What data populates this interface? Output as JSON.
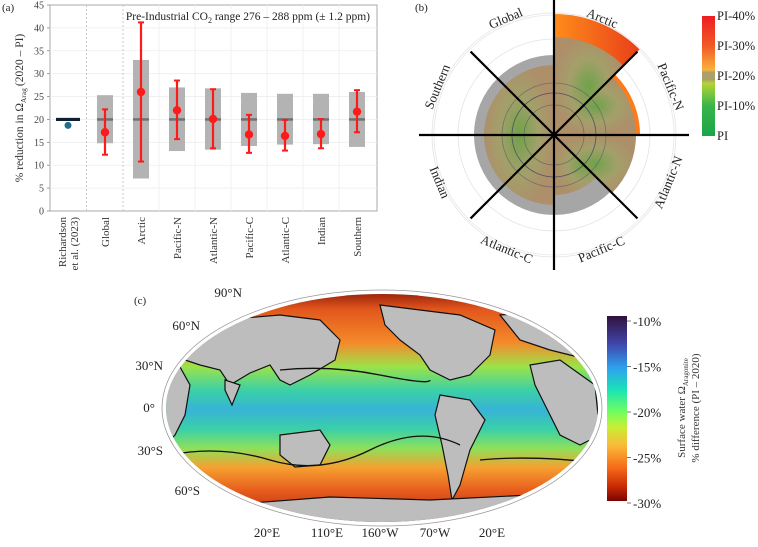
{
  "chart_data": [
    {
      "panel": "(a)",
      "type": "bar",
      "title": "",
      "annotation": "Pre-Industrial CO₂ range 276 – 288 ppm (± 1.2 ppm)",
      "xlabel": "",
      "ylabel": "% reduction in Ω_Arag (2020 – PI)",
      "ylim": [
        0,
        45
      ],
      "yticks": [
        0,
        5,
        10,
        15,
        20,
        25,
        30,
        35,
        40,
        45
      ],
      "grid": true,
      "categories": [
        "Richardson et al. (2023)",
        "Global",
        "Arctic",
        "Pacific-N",
        "Atlantic-N",
        "Pacific-C",
        "Atlantic-C",
        "Indian",
        "Southern"
      ],
      "series": [
        {
          "name": "Range (grey box) low",
          "values": [
            null,
            14.8,
            7.1,
            13.1,
            13.4,
            14.2,
            14.5,
            14.6,
            14.0
          ]
        },
        {
          "name": "Range (grey box) high",
          "values": [
            null,
            25.3,
            33.0,
            27.0,
            26.8,
            25.8,
            25.6,
            25.6,
            26.0
          ]
        },
        {
          "name": "Reference line",
          "values": [
            20,
            20,
            20,
            20,
            20,
            20,
            20,
            20,
            20
          ]
        },
        {
          "name": "Mean",
          "values": [
            18.7,
            17.2,
            26.0,
            22.0,
            20.1,
            16.7,
            16.4,
            16.8,
            21.7
          ]
        },
        {
          "name": "Error low",
          "values": [
            null,
            12.3,
            10.8,
            15.7,
            13.7,
            12.7,
            13.2,
            13.7,
            17.2
          ]
        },
        {
          "name": "Error high",
          "values": [
            null,
            22.2,
            41.2,
            28.5,
            26.6,
            21.0,
            19.9,
            20.1,
            26.4
          ]
        }
      ]
    },
    {
      "panel": "(b)",
      "type": "pie",
      "title": "",
      "sectors": [
        "Arctic",
        "Pacific-N",
        "Atlantic-N",
        "Pacific-C",
        "Atlantic-C",
        "Indian",
        "Southern",
        "Global"
      ],
      "values_pct_reduction": [
        33,
        27,
        26.8,
        25.8,
        25.6,
        25.6,
        26,
        25.3
      ],
      "inner_values_pct_reduction": [
        26,
        22,
        20.1,
        16.7,
        16.4,
        16.8,
        21.7,
        17.2
      ],
      "legend": [
        "PI-40%",
        "PI-30%",
        "PI-20%",
        "PI-10%",
        "PI"
      ]
    },
    {
      "panel": "(c)",
      "type": "heatmap",
      "title": "",
      "colorbar_label": "Surface water Ω_Aragonite % difference (PI – 2020)",
      "colorbar_ticks": [
        "-10%",
        "-15%",
        "-20%",
        "-25%",
        "-30%"
      ],
      "lat_ticks": [
        "90°N",
        "60°N",
        "30°N",
        "0°",
        "30°S",
        "60°S"
      ],
      "lon_ticks": [
        "20°E",
        "110°E",
        "160°W",
        "70°W",
        "20°E"
      ]
    }
  ],
  "panel_a": {
    "label": "(a)",
    "annotation_prefix": "Pre-Industrial CO",
    "annotation_sub": "2",
    "annotation_suffix": " range 276 – 288 ppm (± 1.2 ppm)",
    "ylabel_prefix": "% reduction in Ω",
    "ylabel_sub": "Arag",
    "ylabel_suffix": "(2020 – PI)",
    "yticks": [
      "0",
      "5",
      "10",
      "15",
      "20",
      "25",
      "30",
      "35",
      "40",
      "45"
    ],
    "categories": [
      {
        "line1": "Richardson",
        "line2": "et al. (2023)"
      },
      {
        "line1": "Global",
        "line2": ""
      },
      {
        "line1": "Arctic",
        "line2": ""
      },
      {
        "line1": "Pacific-N",
        "line2": ""
      },
      {
        "line1": "Atlantic-N",
        "line2": ""
      },
      {
        "line1": "Pacific-C",
        "line2": ""
      },
      {
        "line1": "Atlantic-C",
        "line2": ""
      },
      {
        "line1": "Indian",
        "line2": ""
      },
      {
        "line1": "Southern",
        "line2": ""
      }
    ]
  },
  "panel_b": {
    "label": "(b)",
    "sector_labels": [
      "Arctic",
      "Pacific-N",
      "Atlantic-N",
      "Pacific-C",
      "Atlantic-C",
      "Indian",
      "Southern",
      "Global"
    ],
    "legend": [
      "PI-40%",
      "PI-30%",
      "PI-20%",
      "PI-10%",
      "PI"
    ]
  },
  "panel_c": {
    "label": "(c)",
    "lat_labels": [
      "90°N",
      "60°N",
      "30°N",
      "0°",
      "30°S",
      "60°S"
    ],
    "lon_labels": [
      "20°E",
      "110°E",
      "160°W",
      "70°W",
      "20°E"
    ],
    "colorbar_ticks": [
      "-10%",
      "-15%",
      "-20%",
      "-25%",
      "-30%"
    ],
    "colorbar_title_prefix": "Surface water Ω",
    "colorbar_title_sub": "Aragonite",
    "colorbar_title_line2": "% difference (PI – 2020)"
  },
  "colors": {
    "error_bar": "#ff1a1a",
    "range_box": "#b3b3b3",
    "ref_line": "#707070",
    "richardson_line": "#0d1f33",
    "richardson_dot": "#1f6f8b",
    "land": "#bdbdbd"
  }
}
